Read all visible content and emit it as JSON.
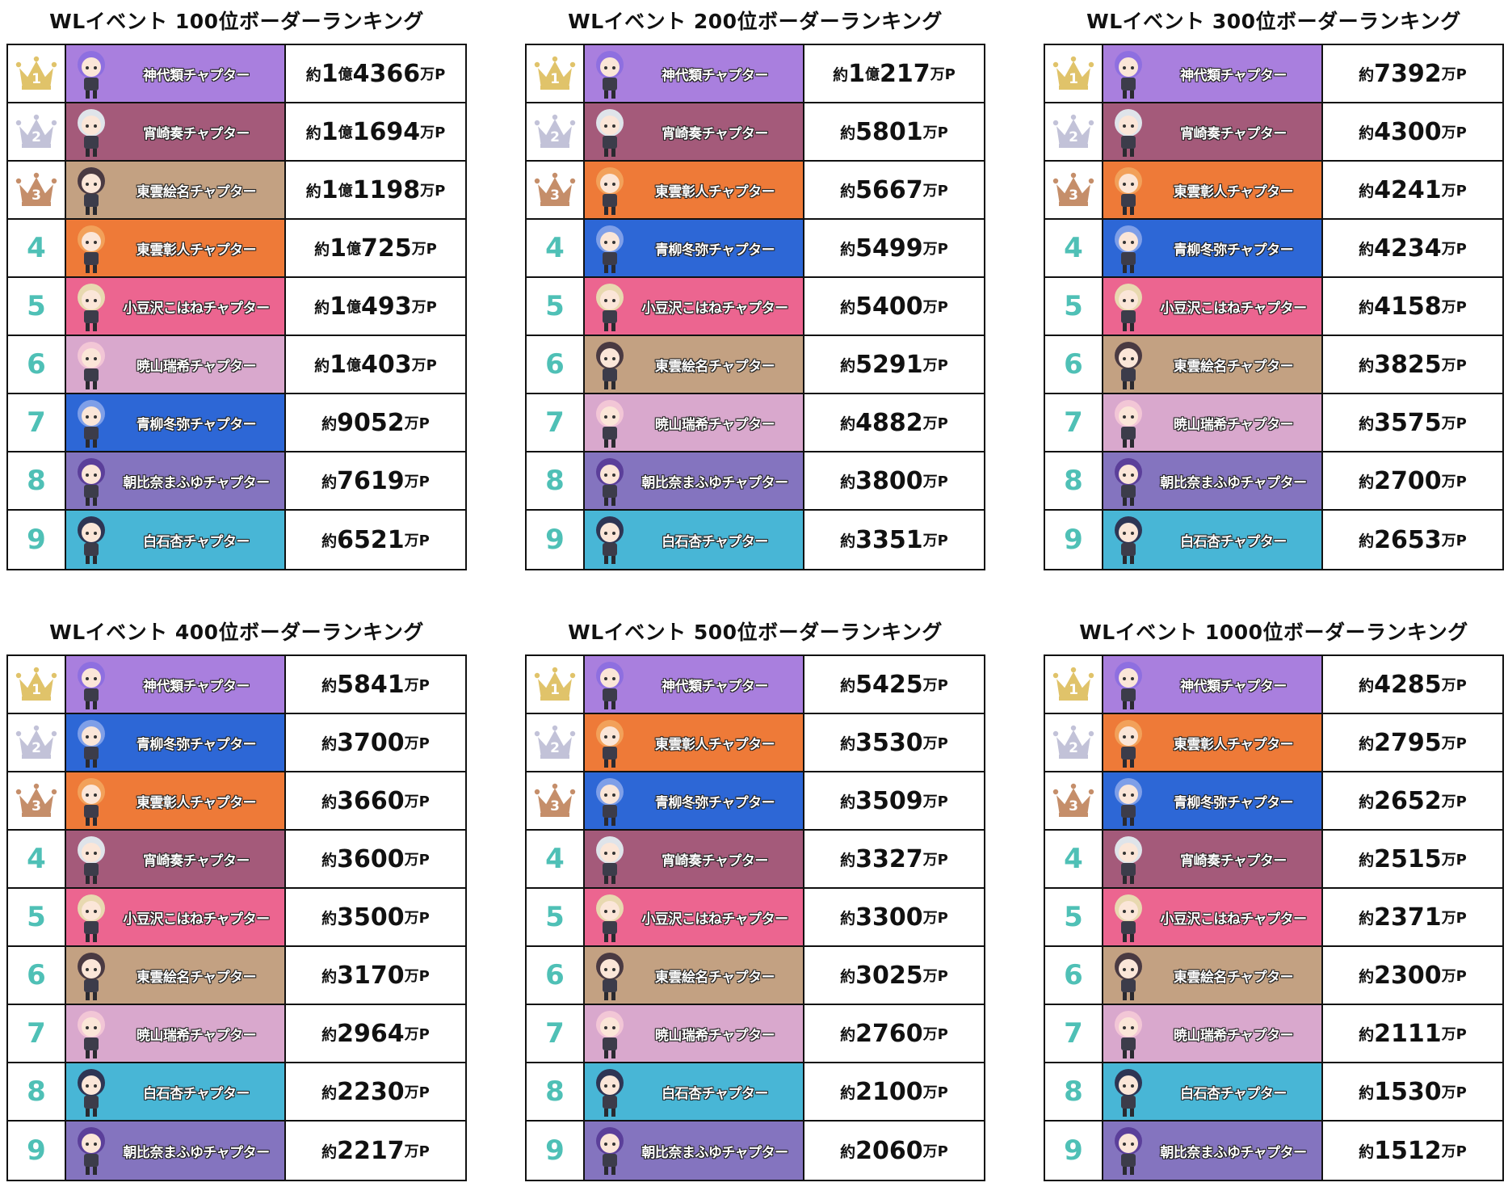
{
  "colors": {
    "rank_number": "#4fc0b6",
    "crown_gold": "#e0c36a",
    "crown_silver": "#c2c2d8",
    "crown_bronze": "#c58e6a"
  },
  "characters": {
    "kamishiro": {
      "name": "神代類チャプター",
      "color": "#a97fde",
      "hair": "#8e6fe0"
    },
    "kanade": {
      "name": "宵崎奏チャプター",
      "color": "#a45a7a",
      "hair": "#dfe4ea"
    },
    "ena": {
      "name": "東雲絵名チャプター",
      "color": "#c3a182",
      "hair": "#4a3a42"
    },
    "akito": {
      "name": "東雲彰人チャプター",
      "color": "#ee7a38",
      "hair": "#f2a15a"
    },
    "kohane": {
      "name": "小豆沢こはねチャプター",
      "color": "#ec6590",
      "hair": "#e8d9b0"
    },
    "mizuki": {
      "name": "暁山瑞希チャプター",
      "color": "#d9a8cd",
      "hair": "#f2c6d6"
    },
    "toya": {
      "name": "青柳冬弥チャプター",
      "color": "#2d67d6",
      "hair": "#7f9fe8"
    },
    "mafuyu": {
      "name": "朝比奈まふゆチャプター",
      "color": "#8474bf",
      "hair": "#5b3f9a"
    },
    "an": {
      "name": "白石杏チャプター",
      "color": "#48b6d6",
      "hair": "#2e3554"
    }
  },
  "panels": [
    {
      "title": "WLイベント 100位ボーダーランキング",
      "rows": [
        {
          "rank": "1",
          "char": "kamishiro",
          "prefix": "約",
          "main": "1",
          "oku": "億",
          "rest": "4366",
          "unit": "万P"
        },
        {
          "rank": "2",
          "char": "kanade",
          "prefix": "約",
          "main": "1",
          "oku": "億",
          "rest": "1694",
          "unit": "万P"
        },
        {
          "rank": "3",
          "char": "ena",
          "prefix": "約",
          "main": "1",
          "oku": "億",
          "rest": "1198",
          "unit": "万P"
        },
        {
          "rank": "4",
          "char": "akito",
          "prefix": "約",
          "main": "1",
          "oku": "億",
          "rest": "725",
          "unit": "万P"
        },
        {
          "rank": "5",
          "char": "kohane",
          "prefix": "約",
          "main": "1",
          "oku": "億",
          "rest": "493",
          "unit": "万P"
        },
        {
          "rank": "6",
          "char": "mizuki",
          "prefix": "約",
          "main": "1",
          "oku": "億",
          "rest": "403",
          "unit": "万P"
        },
        {
          "rank": "7",
          "char": "toya",
          "prefix": "約",
          "main": "9052",
          "oku": "",
          "rest": "",
          "unit": "万P"
        },
        {
          "rank": "8",
          "char": "mafuyu",
          "prefix": "約",
          "main": "7619",
          "oku": "",
          "rest": "",
          "unit": "万P"
        },
        {
          "rank": "9",
          "char": "an",
          "prefix": "約",
          "main": "6521",
          "oku": "",
          "rest": "",
          "unit": "万P"
        }
      ]
    },
    {
      "title": "WLイベント 200位ボーダーランキング",
      "rows": [
        {
          "rank": "1",
          "char": "kamishiro",
          "prefix": "約",
          "main": "1",
          "oku": "億",
          "rest": "217",
          "unit": "万P"
        },
        {
          "rank": "2",
          "char": "kanade",
          "prefix": "約",
          "main": "5801",
          "oku": "",
          "rest": "",
          "unit": "万P"
        },
        {
          "rank": "3",
          "char": "akito",
          "prefix": "約",
          "main": "5667",
          "oku": "",
          "rest": "",
          "unit": "万P"
        },
        {
          "rank": "4",
          "char": "toya",
          "prefix": "約",
          "main": "5499",
          "oku": "",
          "rest": "",
          "unit": "万P"
        },
        {
          "rank": "5",
          "char": "kohane",
          "prefix": "約",
          "main": "5400",
          "oku": "",
          "rest": "",
          "unit": "万P"
        },
        {
          "rank": "6",
          "char": "ena",
          "prefix": "約",
          "main": "5291",
          "oku": "",
          "rest": "",
          "unit": "万P"
        },
        {
          "rank": "7",
          "char": "mizuki",
          "prefix": "約",
          "main": "4882",
          "oku": "",
          "rest": "",
          "unit": "万P"
        },
        {
          "rank": "8",
          "char": "mafuyu",
          "prefix": "約",
          "main": "3800",
          "oku": "",
          "rest": "",
          "unit": "万P"
        },
        {
          "rank": "9",
          "char": "an",
          "prefix": "約",
          "main": "3351",
          "oku": "",
          "rest": "",
          "unit": "万P"
        }
      ]
    },
    {
      "title": "WLイベント 300位ボーダーランキング",
      "rows": [
        {
          "rank": "1",
          "char": "kamishiro",
          "prefix": "約",
          "main": "7392",
          "oku": "",
          "rest": "",
          "unit": "万P"
        },
        {
          "rank": "2",
          "char": "kanade",
          "prefix": "約",
          "main": "4300",
          "oku": "",
          "rest": "",
          "unit": "万P"
        },
        {
          "rank": "3",
          "char": "akito",
          "prefix": "約",
          "main": "4241",
          "oku": "",
          "rest": "",
          "unit": "万P"
        },
        {
          "rank": "4",
          "char": "toya",
          "prefix": "約",
          "main": "4234",
          "oku": "",
          "rest": "",
          "unit": "万P"
        },
        {
          "rank": "5",
          "char": "kohane",
          "prefix": "約",
          "main": "4158",
          "oku": "",
          "rest": "",
          "unit": "万P"
        },
        {
          "rank": "6",
          "char": "ena",
          "prefix": "約",
          "main": "3825",
          "oku": "",
          "rest": "",
          "unit": "万P"
        },
        {
          "rank": "7",
          "char": "mizuki",
          "prefix": "約",
          "main": "3575",
          "oku": "",
          "rest": "",
          "unit": "万P"
        },
        {
          "rank": "8",
          "char": "mafuyu",
          "prefix": "約",
          "main": "2700",
          "oku": "",
          "rest": "",
          "unit": "万P"
        },
        {
          "rank": "9",
          "char": "an",
          "prefix": "約",
          "main": "2653",
          "oku": "",
          "rest": "",
          "unit": "万P"
        }
      ]
    },
    {
      "title": "WLイベント 400位ボーダーランキング",
      "rows": [
        {
          "rank": "1",
          "char": "kamishiro",
          "prefix": "約",
          "main": "5841",
          "oku": "",
          "rest": "",
          "unit": "万P"
        },
        {
          "rank": "2",
          "char": "toya",
          "prefix": "約",
          "main": "3700",
          "oku": "",
          "rest": "",
          "unit": "万P"
        },
        {
          "rank": "3",
          "char": "akito",
          "prefix": "約",
          "main": "3660",
          "oku": "",
          "rest": "",
          "unit": "万P"
        },
        {
          "rank": "4",
          "char": "kanade",
          "prefix": "約",
          "main": "3600",
          "oku": "",
          "rest": "",
          "unit": "万P"
        },
        {
          "rank": "5",
          "char": "kohane",
          "prefix": "約",
          "main": "3500",
          "oku": "",
          "rest": "",
          "unit": "万P"
        },
        {
          "rank": "6",
          "char": "ena",
          "prefix": "約",
          "main": "3170",
          "oku": "",
          "rest": "",
          "unit": "万P"
        },
        {
          "rank": "7",
          "char": "mizuki",
          "prefix": "約",
          "main": "2964",
          "oku": "",
          "rest": "",
          "unit": "万P"
        },
        {
          "rank": "8",
          "char": "an",
          "prefix": "約",
          "main": "2230",
          "oku": "",
          "rest": "",
          "unit": "万P"
        },
        {
          "rank": "9",
          "char": "mafuyu",
          "prefix": "約",
          "main": "2217",
          "oku": "",
          "rest": "",
          "unit": "万P"
        }
      ]
    },
    {
      "title": "WLイベント 500位ボーダーランキング",
      "rows": [
        {
          "rank": "1",
          "char": "kamishiro",
          "prefix": "約",
          "main": "5425",
          "oku": "",
          "rest": "",
          "unit": "万P"
        },
        {
          "rank": "2",
          "char": "akito",
          "prefix": "約",
          "main": "3530",
          "oku": "",
          "rest": "",
          "unit": "万P"
        },
        {
          "rank": "3",
          "char": "toya",
          "prefix": "約",
          "main": "3509",
          "oku": "",
          "rest": "",
          "unit": "万P"
        },
        {
          "rank": "4",
          "char": "kanade",
          "prefix": "約",
          "main": "3327",
          "oku": "",
          "rest": "",
          "unit": "万P"
        },
        {
          "rank": "5",
          "char": "kohane",
          "prefix": "約",
          "main": "3300",
          "oku": "",
          "rest": "",
          "unit": "万P"
        },
        {
          "rank": "6",
          "char": "ena",
          "prefix": "約",
          "main": "3025",
          "oku": "",
          "rest": "",
          "unit": "万P"
        },
        {
          "rank": "7",
          "char": "mizuki",
          "prefix": "約",
          "main": "2760",
          "oku": "",
          "rest": "",
          "unit": "万P"
        },
        {
          "rank": "8",
          "char": "an",
          "prefix": "約",
          "main": "2100",
          "oku": "",
          "rest": "",
          "unit": "万P"
        },
        {
          "rank": "9",
          "char": "mafuyu",
          "prefix": "約",
          "main": "2060",
          "oku": "",
          "rest": "",
          "unit": "万P"
        }
      ]
    },
    {
      "title": "WLイベント 1000位ボーダーランキング",
      "rows": [
        {
          "rank": "1",
          "char": "kamishiro",
          "prefix": "約",
          "main": "4285",
          "oku": "",
          "rest": "",
          "unit": "万P"
        },
        {
          "rank": "2",
          "char": "akito",
          "prefix": "約",
          "main": "2795",
          "oku": "",
          "rest": "",
          "unit": "万P"
        },
        {
          "rank": "3",
          "char": "toya",
          "prefix": "約",
          "main": "2652",
          "oku": "",
          "rest": "",
          "unit": "万P"
        },
        {
          "rank": "4",
          "char": "kanade",
          "prefix": "約",
          "main": "2515",
          "oku": "",
          "rest": "",
          "unit": "万P"
        },
        {
          "rank": "5",
          "char": "kohane",
          "prefix": "約",
          "main": "2371",
          "oku": "",
          "rest": "",
          "unit": "万P"
        },
        {
          "rank": "6",
          "char": "ena",
          "prefix": "約",
          "main": "2300",
          "oku": "",
          "rest": "",
          "unit": "万P"
        },
        {
          "rank": "7",
          "char": "mizuki",
          "prefix": "約",
          "main": "2111",
          "oku": "",
          "rest": "",
          "unit": "万P"
        },
        {
          "rank": "8",
          "char": "an",
          "prefix": "約",
          "main": "1530",
          "oku": "",
          "rest": "",
          "unit": "万P"
        },
        {
          "rank": "9",
          "char": "mafuyu",
          "prefix": "約",
          "main": "1512",
          "oku": "",
          "rest": "",
          "unit": "万P"
        }
      ]
    }
  ]
}
